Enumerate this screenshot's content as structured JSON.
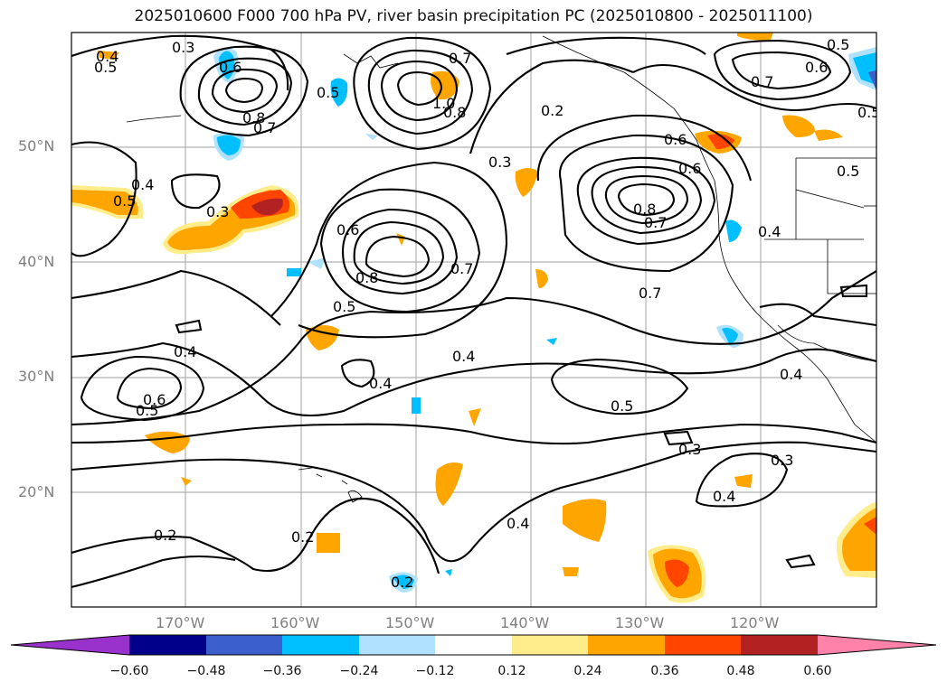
{
  "title": "2025010600 F000 700 hPa PV, river basin precipitation PC (2025010800 - 2025011100)",
  "lat_labels": [
    "50°N",
    "40°N",
    "30°N",
    "20°N"
  ],
  "lon_labels": [
    "170°W",
    "160°W",
    "150°W",
    "140°W",
    "130°W",
    "120°W"
  ],
  "colorbar": {
    "ticks": [
      "−0.60",
      "−0.48",
      "−0.36",
      "−0.24",
      "−0.12",
      "0.12",
      "0.24",
      "0.36",
      "0.48",
      "0.60"
    ],
    "colors": [
      "#9932cc",
      "#00008b",
      "#3a5fcd",
      "#00bfff",
      "#b0e2ff",
      "#ffffff",
      "#ffec8b",
      "#ffa500",
      "#ff4500",
      "#b22222",
      "#ff82ab"
    ]
  },
  "contour_labels": [
    "0.3",
    "0.6",
    "0.5",
    "0.8",
    "0.7",
    "0.4",
    "0.5",
    "0.3",
    "0.6",
    "0.8",
    "0.5",
    "0.7",
    "0.2",
    "0.3",
    "0.6",
    "0.7",
    "0.8",
    "0.4",
    "0.5",
    "0.6",
    "0.7",
    "0.5",
    "0.4",
    "0.6",
    "0.5",
    "0.4",
    "0.4",
    "0.5",
    "0.3",
    "0.4",
    "0.3",
    "0.2",
    "0.2",
    "0.4",
    "0.2",
    "0.4",
    "0.7",
    "0.6",
    "0.5",
    "1.0",
    "0.8",
    "0.5",
    "0.7",
    "0.4"
  ]
}
